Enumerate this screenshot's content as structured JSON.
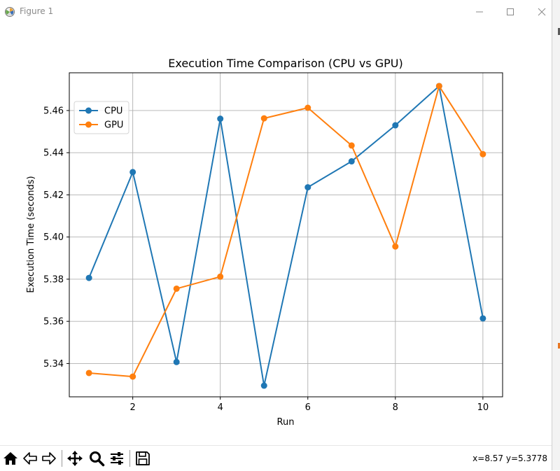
{
  "window": {
    "title": "Figure 1",
    "app_icon": "matplotlib-figure-icon",
    "controls": [
      "minimize-icon",
      "maximize-icon",
      "close-icon"
    ]
  },
  "toolbar": {
    "buttons": [
      "home-icon",
      "back-arrow-icon",
      "forward-arrow-icon",
      "pan-move-icon",
      "zoom-magnifier-icon",
      "configure-subplots-icon",
      "save-disk-icon"
    ],
    "coords": "x=8.57 y=5.3778"
  },
  "chart_data": {
    "type": "line",
    "title": "Execution Time Comparison (CPU vs GPU)",
    "xlabel": "Run",
    "ylabel": "Execution Time (seconds)",
    "x": [
      1,
      2,
      3,
      4,
      5,
      6,
      7,
      8,
      9,
      10
    ],
    "xticks": [
      2,
      4,
      6,
      8,
      10
    ],
    "yticks": [
      5.34,
      5.36,
      5.38,
      5.4,
      5.42,
      5.44,
      5.46
    ],
    "xlim": [
      0.55,
      10.45
    ],
    "ylim": [
      5.3242,
      5.4779
    ],
    "grid": true,
    "legend": "upper-left",
    "series": [
      {
        "name": "CPU",
        "color": "#1f77b4",
        "marker": "circle",
        "values": [
          5.3806,
          5.4308,
          5.3407,
          5.4561,
          5.3295,
          5.4236,
          5.4359,
          5.453,
          5.4716,
          5.3614
        ]
      },
      {
        "name": "GPU",
        "color": "#ff7f0e",
        "marker": "circle",
        "values": [
          5.3355,
          5.3338,
          5.3755,
          5.3812,
          5.4563,
          5.4613,
          5.4434,
          5.3955,
          5.4716,
          5.4393
        ]
      }
    ]
  }
}
